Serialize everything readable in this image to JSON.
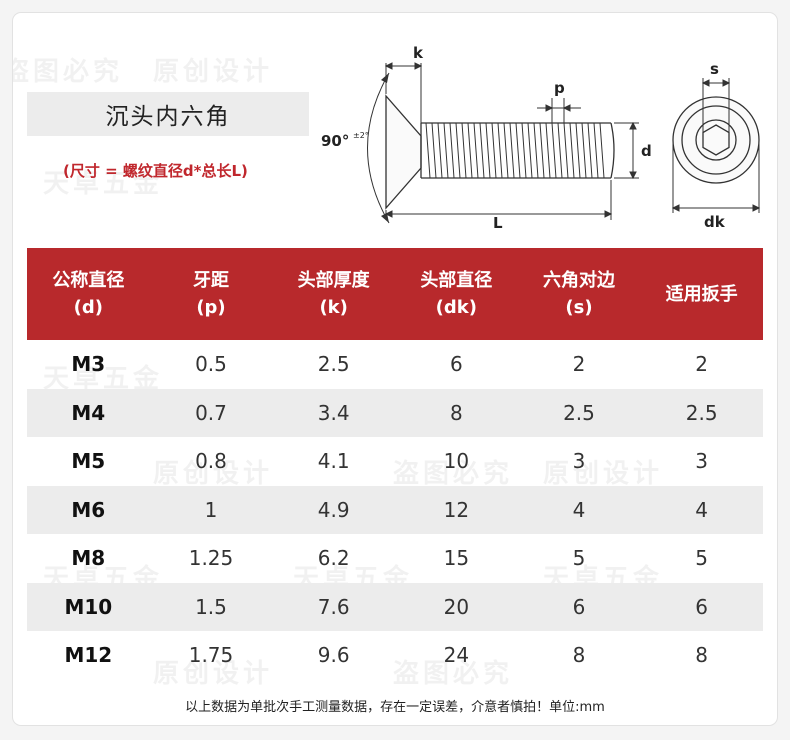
{
  "title": "沉头内六角",
  "subtitle": "(尺寸 = 螺纹直径d*总长L)",
  "diagram": {
    "labels": {
      "k": "k",
      "p": "p",
      "angle": "90°",
      "angle_tol": "±2°",
      "d": "d",
      "L": "L",
      "s": "s",
      "dk": "dk"
    }
  },
  "table": {
    "headers": [
      {
        "name": "公称直径",
        "sym": "(d)"
      },
      {
        "name": "牙距",
        "sym": "(p)"
      },
      {
        "name": "头部厚度",
        "sym": "(k)"
      },
      {
        "name": "头部直径",
        "sym": "(dk)"
      },
      {
        "name": "六角对边",
        "sym": "(s)"
      },
      {
        "name": "适用扳手",
        "sym": ""
      }
    ],
    "rows": [
      [
        "M3",
        "0.5",
        "2.5",
        "6",
        "2",
        "2"
      ],
      [
        "M4",
        "0.7",
        "3.4",
        "8",
        "2.5",
        "2.5"
      ],
      [
        "M5",
        "0.8",
        "4.1",
        "10",
        "3",
        "3"
      ],
      [
        "M6",
        "1",
        "4.9",
        "12",
        "4",
        "4"
      ],
      [
        "M8",
        "1.25",
        "6.2",
        "15",
        "5",
        "5"
      ],
      [
        "M10",
        "1.5",
        "7.6",
        "20",
        "6",
        "6"
      ],
      [
        "M12",
        "1.75",
        "9.6",
        "24",
        "8",
        "8"
      ]
    ]
  },
  "footnote": "以上数据为单批次手工测量数据，存在一定误差，介意者慎拍！单位:mm",
  "watermarks": [
    "原创设计",
    "天卓五金",
    "盗图必究"
  ],
  "colors": {
    "header_bg": "#b8292c",
    "subtitle": "#c0272d",
    "alt_row": "#ececec"
  }
}
